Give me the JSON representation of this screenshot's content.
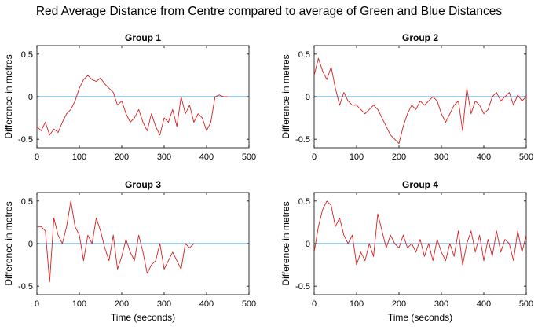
{
  "figure": {
    "title": "Red Average Distance from Centre compared to average of Green and Blue Distances"
  },
  "colors": {
    "series": "#d62020",
    "zero_line": "#4aa3d1",
    "axis": "#000000"
  },
  "chart_data": [
    {
      "type": "line",
      "title": "Group 1",
      "xlabel": "",
      "ylabel": "Difference in metres",
      "xlim": [
        0,
        500
      ],
      "ylim": [
        -0.6,
        0.6
      ],
      "xticks": [
        0,
        100,
        200,
        300,
        400,
        500
      ],
      "yticks": [
        -0.5,
        0,
        0.5
      ],
      "ytick_labels": [
        "-0.5",
        "0",
        "0.5"
      ],
      "reference_line_y": 0,
      "series": [
        {
          "x": [
            0,
            10,
            20,
            30,
            40,
            50,
            60,
            70,
            80,
            90,
            100,
            110,
            120,
            130,
            140,
            150,
            160,
            170,
            180,
            190,
            200,
            210,
            220,
            230,
            240,
            250,
            260,
            270,
            280,
            290,
            300,
            310,
            320,
            330,
            340,
            350,
            360,
            370,
            380,
            390,
            400,
            410,
            420,
            430,
            440,
            450
          ],
          "y": [
            -0.35,
            -0.4,
            -0.3,
            -0.45,
            -0.38,
            -0.42,
            -0.3,
            -0.2,
            -0.15,
            -0.05,
            0.1,
            0.2,
            0.25,
            0.2,
            0.18,
            0.22,
            0.15,
            0.1,
            0.05,
            -0.1,
            -0.05,
            -0.2,
            -0.3,
            -0.25,
            -0.15,
            -0.3,
            -0.4,
            -0.2,
            -0.35,
            -0.45,
            -0.25,
            -0.3,
            -0.15,
            -0.35,
            0.0,
            -0.2,
            -0.1,
            -0.3,
            -0.2,
            -0.25,
            -0.4,
            -0.3,
            0.0,
            0.02,
            0.0,
            0.0
          ]
        }
      ]
    },
    {
      "type": "line",
      "title": "Group 2",
      "xlabel": "",
      "ylabel": "Difference in metres",
      "xlim": [
        0,
        500
      ],
      "ylim": [
        -0.6,
        0.6
      ],
      "xticks": [
        0,
        100,
        200,
        300,
        400,
        500
      ],
      "yticks": [
        -0.5,
        0,
        0.5
      ],
      "ytick_labels": [
        "-0.5",
        "0",
        "0.5"
      ],
      "reference_line_y": 0,
      "series": [
        {
          "x": [
            0,
            10,
            20,
            30,
            40,
            50,
            60,
            70,
            80,
            90,
            100,
            110,
            120,
            130,
            140,
            150,
            160,
            170,
            180,
            190,
            200,
            210,
            220,
            230,
            240,
            250,
            260,
            270,
            280,
            290,
            300,
            310,
            320,
            330,
            340,
            350,
            360,
            370,
            380,
            390,
            400,
            410,
            420,
            430,
            440,
            450,
            460,
            470,
            480,
            490,
            500
          ],
          "y": [
            0.25,
            0.45,
            0.3,
            0.2,
            0.35,
            0.1,
            -0.1,
            0.05,
            -0.05,
            -0.1,
            -0.1,
            -0.15,
            -0.2,
            -0.15,
            -0.1,
            -0.15,
            -0.25,
            -0.35,
            -0.45,
            -0.5,
            -0.55,
            -0.35,
            -0.2,
            -0.1,
            -0.15,
            -0.05,
            -0.1,
            -0.05,
            0.0,
            -0.05,
            -0.2,
            -0.3,
            -0.2,
            -0.1,
            -0.05,
            -0.4,
            0.1,
            -0.2,
            -0.05,
            -0.1,
            -0.2,
            -0.15,
            0.0,
            0.05,
            -0.05,
            0.0,
            0.05,
            -0.1,
            0.02,
            -0.05,
            0.0
          ]
        }
      ]
    },
    {
      "type": "line",
      "title": "Group 3",
      "xlabel": "Time (seconds)",
      "ylabel": "Difference in metres",
      "xlim": [
        0,
        500
      ],
      "ylim": [
        -0.6,
        0.6
      ],
      "xticks": [
        0,
        100,
        200,
        300,
        400,
        500
      ],
      "yticks": [
        -0.5,
        0,
        0.5
      ],
      "ytick_labels": [
        "-0.5",
        "0",
        "0.5"
      ],
      "reference_line_y": 0,
      "series": [
        {
          "x": [
            0,
            10,
            20,
            30,
            40,
            50,
            60,
            70,
            80,
            90,
            100,
            110,
            120,
            130,
            140,
            150,
            160,
            170,
            180,
            190,
            200,
            210,
            220,
            230,
            240,
            250,
            260,
            270,
            280,
            290,
            300,
            310,
            320,
            330,
            340,
            350,
            360,
            370
          ],
          "y": [
            0.2,
            0.2,
            0.15,
            -0.45,
            0.3,
            0.1,
            0.0,
            0.2,
            0.5,
            0.2,
            0.1,
            -0.2,
            0.1,
            0.0,
            0.3,
            0.15,
            -0.05,
            -0.2,
            0.1,
            -0.3,
            -0.15,
            0.05,
            -0.1,
            -0.2,
            0.1,
            -0.1,
            -0.35,
            -0.25,
            -0.2,
            0.0,
            -0.3,
            -0.2,
            -0.1,
            -0.2,
            -0.3,
            0.0,
            -0.05,
            0.0
          ]
        }
      ]
    },
    {
      "type": "line",
      "title": "Group 4",
      "xlabel": "Time (seconds)",
      "ylabel": "Difference in metres",
      "xlim": [
        0,
        500
      ],
      "ylim": [
        -0.6,
        0.6
      ],
      "xticks": [
        0,
        100,
        200,
        300,
        400,
        500
      ],
      "yticks": [
        -0.5,
        0,
        0.5
      ],
      "ytick_labels": [
        "-0.5",
        "0",
        "0.5"
      ],
      "reference_line_y": 0,
      "series": [
        {
          "x": [
            0,
            10,
            20,
            30,
            40,
            50,
            60,
            70,
            80,
            90,
            100,
            110,
            120,
            130,
            140,
            150,
            160,
            170,
            180,
            190,
            200,
            210,
            220,
            230,
            240,
            250,
            260,
            270,
            280,
            290,
            300,
            310,
            320,
            330,
            340,
            350,
            360,
            370,
            380,
            390,
            400,
            410,
            420,
            430,
            440,
            450,
            460,
            470,
            480,
            490,
            500
          ],
          "y": [
            -0.1,
            0.2,
            0.4,
            0.5,
            0.45,
            0.2,
            0.3,
            0.1,
            0.0,
            0.1,
            -0.25,
            -0.1,
            -0.2,
            0.0,
            -0.15,
            0.35,
            0.15,
            -0.05,
            0.1,
            0.0,
            -0.05,
            0.1,
            -0.05,
            0.0,
            -0.1,
            0.05,
            -0.15,
            0.0,
            -0.2,
            0.05,
            -0.1,
            -0.2,
            0.0,
            -0.15,
            0.15,
            -0.25,
            0.0,
            0.15,
            -0.1,
            0.1,
            -0.2,
            0.05,
            -0.15,
            0.15,
            -0.1,
            0.05,
            0.0,
            -0.2,
            0.15,
            -0.1,
            0.1
          ]
        }
      ]
    }
  ]
}
